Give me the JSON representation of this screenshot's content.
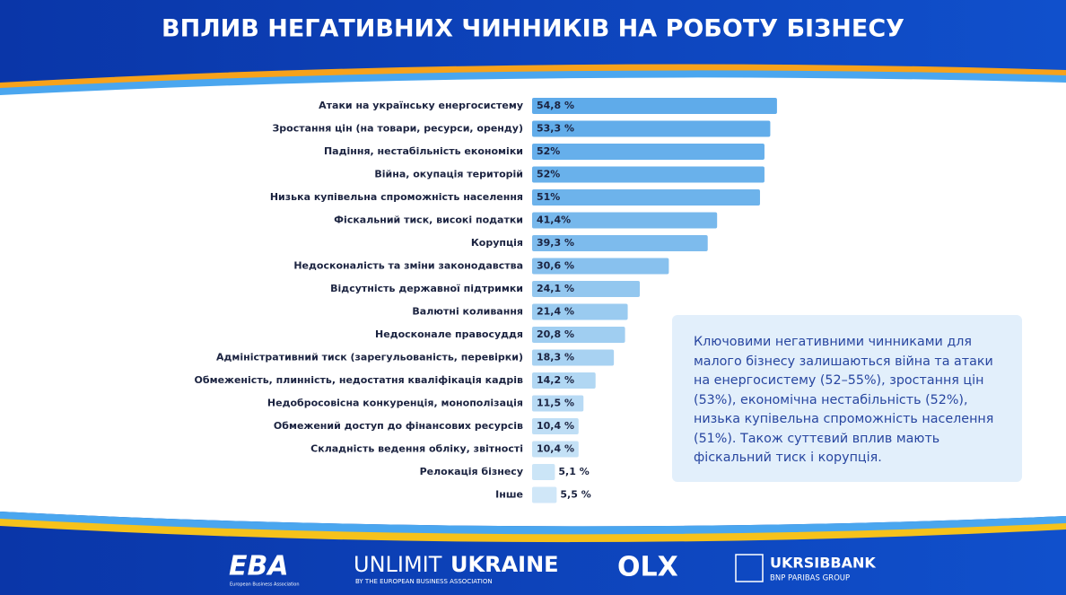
{
  "chart_data": {
    "type": "bar",
    "orientation": "horizontal",
    "title": "ВПЛИВ НЕГАТИВНИХ ЧИННИКІВ НА РОБОТУ БІЗНЕСУ",
    "categories": [
      "Атаки на українську енергосистему",
      "Зростання цін (на товари, ресурси, оренду)",
      "Падіння, нестабільність економіки",
      "Війна, окупація територій",
      "Низька купівельна спроможність населення",
      "Фіскальний тиск, високі податки",
      "Корупція",
      "Недосконалість та зміни законодавства",
      "Відсутність державної підтримки",
      "Валютні коливання",
      "Недосконале правосуддя",
      "Адміністративний тиск (зарегульованість, перевірки)",
      "Обмеженість, плинність, недостатня кваліфікація кадрів",
      "Недобросовісна конкуренція, монополізація",
      "Обмежений доступ до фінансових ресурсів",
      "Складність ведення обліку, звітності",
      "Релокація бізнесу",
      "Інше"
    ],
    "values": [
      54.8,
      53.3,
      52,
      52,
      51,
      41.4,
      39.3,
      30.6,
      24.1,
      21.4,
      20.8,
      18.3,
      14.2,
      11.5,
      10.4,
      10.4,
      5.1,
      5.5
    ],
    "value_labels": [
      "54,8 %",
      "53,3 %",
      "52%",
      "52%",
      "51%",
      "41,4%",
      "39,3 %",
      "30,6 %",
      "24,1 %",
      "21,4 %",
      "20,8 %",
      "18,3 %",
      "14,2 %",
      "11,5 %",
      "10,4 %",
      "10,4 %",
      "5,1 %",
      "5,5 %"
    ],
    "colors": [
      "#5fabea",
      "#62adea",
      "#66afeb",
      "#69b1eb",
      "#6db3eb",
      "#77b8ec",
      "#7dbbed",
      "#88c1ee",
      "#93c7ef",
      "#9acbf0",
      "#a0cef1",
      "#a8d2f2",
      "#b1d7f3",
      "#b8daf4",
      "#bfdef5",
      "#c4e1f6",
      "#cbe5f7",
      "#d0e7f8"
    ],
    "annotation": "Ключовими негативними чинниками для малого бізнесу залишаються війна та атаки на енергосистему (52–55%), зростання цін (53%), економічна нестабільність (52%), низька купівельна спроможність населення (51%). Також суттєвий вплив мають фіскальний тиск і корупція."
  },
  "footer": {
    "eba": "EBA",
    "eba_sub": "European Business Association",
    "unlimit": "UNLIMIT",
    "ukraine": "UKRAINE",
    "unlimit_sub": "BY THE EUROPEAN BUSINESS ASSOCIATION",
    "olx": "OLX",
    "bank": "UKRSIBBANK",
    "bank_sub": "BNP PARIBAS GROUP"
  }
}
